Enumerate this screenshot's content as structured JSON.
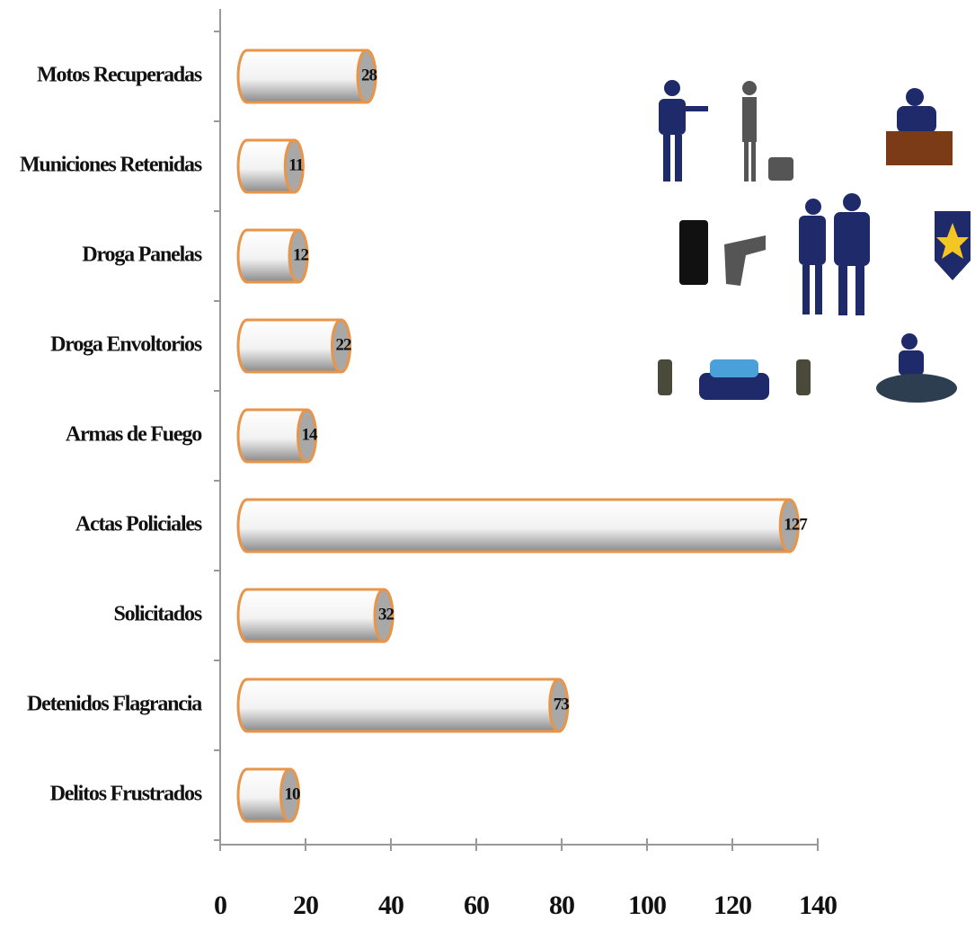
{
  "chart_data": {
    "type": "bar",
    "orientation": "horizontal",
    "categories": [
      "Motos Recuperadas",
      "Municiones Retenidas",
      "Droga Panelas",
      "Droga Envoltorios",
      "Armas de Fuego",
      "Actas Policiales",
      "Solicitados",
      "Detenidos Flagrancia",
      "Delitos Frustrados"
    ],
    "values": [
      28,
      11,
      12,
      22,
      14,
      127,
      32,
      73,
      10
    ],
    "color": "#e8954a",
    "xlim": [
      0,
      140
    ],
    "xticks": [
      0,
      20,
      40,
      60,
      80,
      100,
      120,
      140
    ]
  }
}
